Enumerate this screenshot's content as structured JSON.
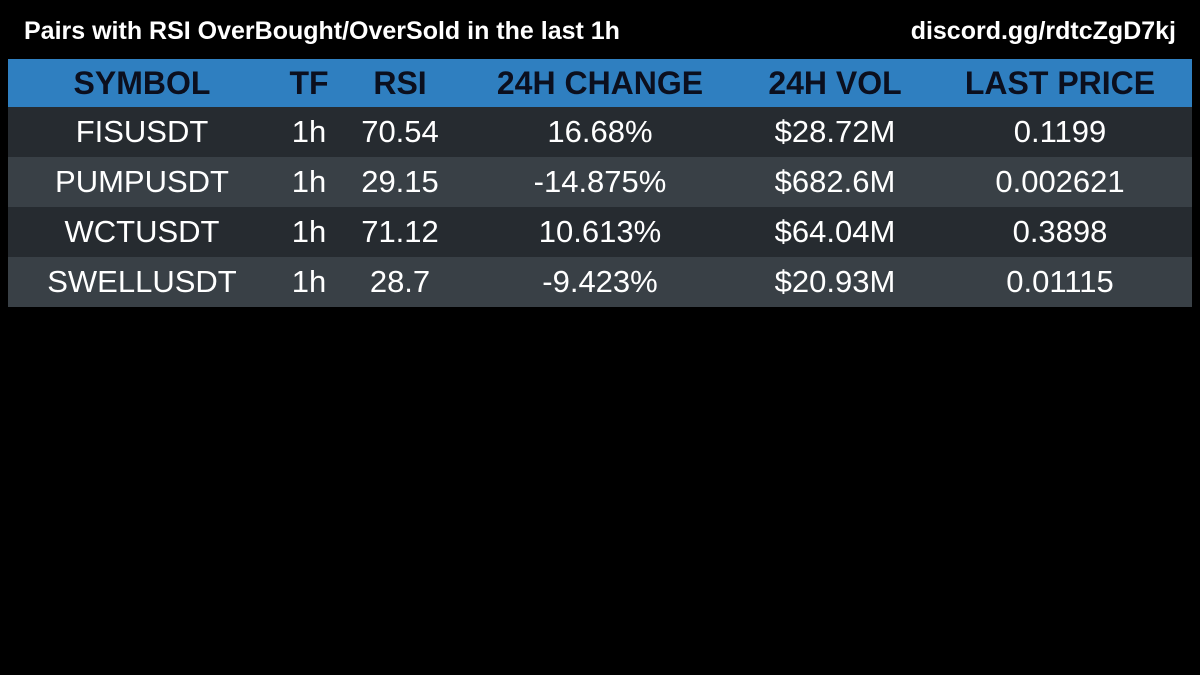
{
  "header": {
    "title": "Pairs with RSI OverBought/OverSold in the last 1h",
    "link": "discord.gg/rdtcZgD7kj"
  },
  "table": {
    "columns": [
      "SYMBOL",
      "TF",
      "RSI",
      "24H CHANGE",
      "24H VOL",
      "LAST PRICE"
    ],
    "rows": [
      [
        "FISUSDT",
        "1h",
        "70.54",
        "16.68%",
        "$28.72M",
        "0.1199"
      ],
      [
        "PUMPUSDT",
        "1h",
        "29.15",
        "-14.875%",
        "$682.6M",
        "0.002621"
      ],
      [
        "WCTUSDT",
        "1h",
        "71.12",
        "10.613%",
        "$64.04M",
        "0.3898"
      ],
      [
        "SWELLUSDT",
        "1h",
        "28.7",
        "-9.423%",
        "$20.93M",
        "0.01115"
      ]
    ]
  },
  "colors": {
    "background": "#000000",
    "header_row": "#2f7fc0",
    "header_text": "#0b0f1e",
    "row_dark": "#262b30",
    "row_light": "#394046",
    "text": "#ffffff"
  }
}
